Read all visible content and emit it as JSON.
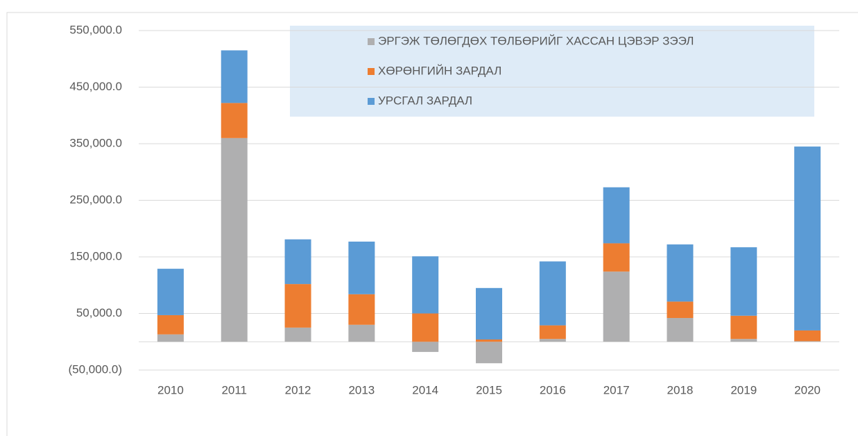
{
  "chart_data": {
    "type": "stacked_bar",
    "categories": [
      "2010",
      "2011",
      "2012",
      "2013",
      "2014",
      "2015",
      "2016",
      "2017",
      "2018",
      "2019",
      "2020"
    ],
    "series": [
      {
        "name": "ЭРГЭЖ ТӨЛӨГДӨХ ТӨЛБӨРИЙГ ХАССАН ЦЭВЭР ЗЭЭЛ",
        "color": "#afafb0",
        "values": [
          13000,
          360000,
          25000,
          30000,
          -18000,
          -38000,
          5000,
          124000,
          42000,
          5000,
          1000
        ]
      },
      {
        "name": "ХӨРӨНГИЙН ЗАРДАЛ",
        "color": "#ed7d31",
        "values": [
          34000,
          62000,
          77000,
          54000,
          50000,
          4000,
          24000,
          50000,
          29000,
          41000,
          19000
        ]
      },
      {
        "name": "УРСГАЛ ЗАРДАЛ",
        "color": "#5b9bd5",
        "values": [
          82000,
          93000,
          79000,
          93000,
          101000,
          91000,
          113000,
          99000,
          101000,
          121000,
          325000
        ]
      }
    ],
    "ylim": [
      -50000,
      550000
    ],
    "yticks": [
      {
        "value": -50000,
        "label": "(50,000.0)"
      },
      {
        "value": 50000,
        "label": "50,000.0"
      },
      {
        "value": 150000,
        "label": "150,000.0"
      },
      {
        "value": 250000,
        "label": "250,000.0"
      },
      {
        "value": 350000,
        "label": "350,000.0"
      },
      {
        "value": 450000,
        "label": "450,000.0"
      },
      {
        "value": 550000,
        "label": "550,000.0"
      }
    ],
    "grid": true
  }
}
